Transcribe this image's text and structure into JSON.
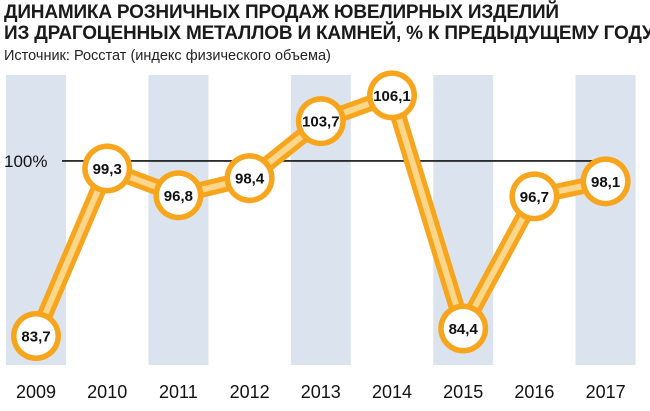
{
  "chart_data": {
    "type": "line",
    "title_line1": "ДИНАМИКА РОЗНИЧНЫХ ПРОДАЖ ЮВЕЛИРНЫХ ИЗДЕЛИЙ",
    "title_line2": "ИЗ ДРАГОЦЕННЫХ МЕТАЛЛОВ И КАМНЕЙ, % К ПРЕДЫДУЩЕМУ ГОДУ",
    "subtitle": "Источник: Росстат (индекс физического объема)",
    "categories": [
      "2009",
      "2010",
      "2011",
      "2012",
      "2013",
      "2014",
      "2015",
      "2016",
      "2017"
    ],
    "values": [
      83.7,
      99.3,
      96.8,
      98.4,
      103.7,
      106.1,
      84.4,
      96.7,
      98.1
    ],
    "value_labels": [
      "83,7",
      "99,3",
      "96,8",
      "98,4",
      "103,7",
      "106,1",
      "84,4",
      "96,7",
      "98,1"
    ],
    "reference_line": {
      "value": 100,
      "label": "100%"
    },
    "ylim": [
      81,
      108
    ],
    "colors": {
      "line": "#f7a51c",
      "line_inner": "#fcd68a",
      "column_band": "#dbe4ee",
      "marker_fill": "#ffffff",
      "reference": "#111111"
    }
  }
}
